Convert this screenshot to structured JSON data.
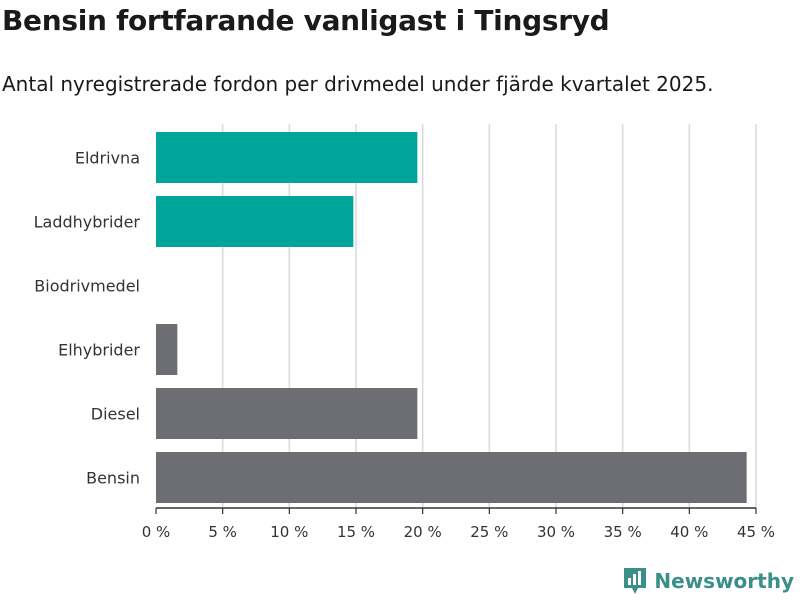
{
  "chart_data": {
    "type": "bar",
    "orientation": "horizontal",
    "title": "Bensin fortfarande vanligast i Tingsryd",
    "subtitle": "Antal nyregistrerade fordon per drivmedel under fjärde kvartalet 2025.",
    "categories": [
      "Eldrivna",
      "Laddhybrider",
      "Biodrivmedel",
      "Elhybrider",
      "Diesel",
      "Bensin"
    ],
    "values": [
      19.6,
      14.8,
      0,
      1.6,
      19.6,
      44.3
    ],
    "bar_colors": [
      "#00a59a",
      "#00a59a",
      "#6d6e73",
      "#6d6e73",
      "#6d6e73",
      "#6d6e73"
    ],
    "xlim": [
      0,
      45
    ],
    "xticks": [
      0,
      5,
      10,
      15,
      20,
      25,
      30,
      35,
      40,
      45
    ],
    "xtick_labels": [
      "0 %",
      "5 %",
      "10 %",
      "15 %",
      "20 %",
      "25 %",
      "30 %",
      "35 %",
      "40 %",
      "45 %"
    ],
    "grid": true,
    "xlabel": "",
    "ylabel": ""
  },
  "branding": {
    "logo_text": "Newsworthy",
    "logo_color": "#3a8f88"
  },
  "colors": {
    "grid": "#d9d9d9",
    "axis": "#333333"
  }
}
